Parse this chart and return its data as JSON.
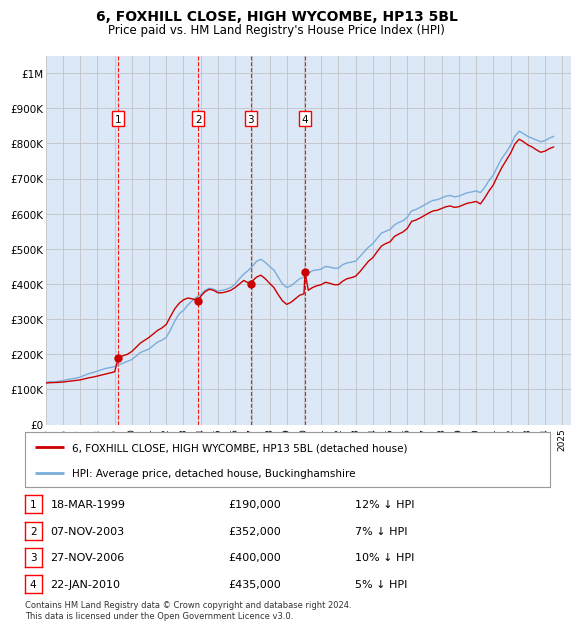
{
  "title": "6, FOXHILL CLOSE, HIGH WYCOMBE, HP13 5BL",
  "subtitle": "Price paid vs. HM Land Registry's House Price Index (HPI)",
  "ylim": [
    0,
    1050000
  ],
  "yticks": [
    0,
    100000,
    200000,
    300000,
    400000,
    500000,
    600000,
    700000,
    800000,
    900000,
    1000000
  ],
  "ytick_labels": [
    "£0",
    "£100K",
    "£200K",
    "£300K",
    "£400K",
    "£500K",
    "£600K",
    "£700K",
    "£800K",
    "£900K",
    "£1M"
  ],
  "hpi_color": "#7aaddb",
  "price_color": "#cc0000",
  "background_color": "#ffffff",
  "grid_color": "#bbbbbb",
  "plot_bg_color": "#dce8f5",
  "transaction_dates": [
    "1999-03-18",
    "2003-11-07",
    "2006-11-27",
    "2010-01-22"
  ],
  "transaction_prices": [
    190000,
    352000,
    400000,
    435000
  ],
  "transaction_labels": [
    "1",
    "2",
    "3",
    "4"
  ],
  "transaction_hpi_pct": [
    "12% ↓ HPI",
    "7% ↓ HPI",
    "10% ↓ HPI",
    "5% ↓ HPI"
  ],
  "transaction_price_labels": [
    "£190,000",
    "£352,000",
    "£400,000",
    "£435,000"
  ],
  "transaction_date_labels": [
    "18-MAR-1999",
    "07-NOV-2003",
    "27-NOV-2006",
    "22-JAN-2010"
  ],
  "legend_label_price": "6, FOXHILL CLOSE, HIGH WYCOMBE, HP13 5BL (detached house)",
  "legend_label_hpi": "HPI: Average price, detached house, Buckinghamshire",
  "footer": "Contains HM Land Registry data © Crown copyright and database right 2024.\nThis data is licensed under the Open Government Licence v3.0.",
  "hpi_data_x": [
    1995.0,
    1995.25,
    1995.5,
    1995.75,
    1996.0,
    1996.25,
    1996.5,
    1996.75,
    1997.0,
    1997.25,
    1997.5,
    1997.75,
    1998.0,
    1998.25,
    1998.5,
    1998.75,
    1999.0,
    1999.25,
    1999.5,
    1999.75,
    2000.0,
    2000.25,
    2000.5,
    2000.75,
    2001.0,
    2001.25,
    2001.5,
    2001.75,
    2002.0,
    2002.25,
    2002.5,
    2002.75,
    2003.0,
    2003.25,
    2003.5,
    2003.75,
    2004.0,
    2004.25,
    2004.5,
    2004.75,
    2005.0,
    2005.25,
    2005.5,
    2005.75,
    2006.0,
    2006.25,
    2006.5,
    2006.75,
    2007.0,
    2007.25,
    2007.5,
    2007.75,
    2008.0,
    2008.25,
    2008.5,
    2008.75,
    2009.0,
    2009.25,
    2009.5,
    2009.75,
    2010.0,
    2010.25,
    2010.5,
    2010.75,
    2011.0,
    2011.25,
    2011.5,
    2011.75,
    2012.0,
    2012.25,
    2012.5,
    2012.75,
    2013.0,
    2013.25,
    2013.5,
    2013.75,
    2014.0,
    2014.25,
    2014.5,
    2014.75,
    2015.0,
    2015.25,
    2015.5,
    2015.75,
    2016.0,
    2016.25,
    2016.5,
    2016.75,
    2017.0,
    2017.25,
    2017.5,
    2017.75,
    2018.0,
    2018.25,
    2018.5,
    2018.75,
    2019.0,
    2019.25,
    2019.5,
    2019.75,
    2020.0,
    2020.25,
    2020.5,
    2020.75,
    2021.0,
    2021.25,
    2021.5,
    2021.75,
    2022.0,
    2022.25,
    2022.5,
    2022.75,
    2023.0,
    2023.25,
    2023.5,
    2023.75,
    2024.0,
    2024.25,
    2024.5
  ],
  "hpi_data_y": [
    120000,
    122000,
    121000,
    123000,
    125000,
    128000,
    130000,
    132000,
    135000,
    140000,
    145000,
    148000,
    152000,
    156000,
    160000,
    162000,
    165000,
    170000,
    175000,
    180000,
    185000,
    195000,
    205000,
    210000,
    215000,
    225000,
    235000,
    240000,
    248000,
    270000,
    295000,
    315000,
    325000,
    340000,
    352000,
    362000,
    370000,
    382000,
    388000,
    385000,
    380000,
    382000,
    385000,
    390000,
    400000,
    415000,
    428000,
    438000,
    450000,
    465000,
    470000,
    462000,
    450000,
    440000,
    420000,
    400000,
    390000,
    395000,
    405000,
    415000,
    420000,
    430000,
    438000,
    440000,
    442000,
    450000,
    448000,
    445000,
    445000,
    455000,
    460000,
    462000,
    465000,
    478000,
    492000,
    505000,
    515000,
    530000,
    545000,
    550000,
    555000,
    568000,
    575000,
    580000,
    590000,
    608000,
    612000,
    618000,
    625000,
    632000,
    638000,
    640000,
    645000,
    650000,
    652000,
    648000,
    650000,
    655000,
    660000,
    662000,
    665000,
    660000,
    675000,
    695000,
    710000,
    735000,
    758000,
    775000,
    795000,
    820000,
    835000,
    828000,
    820000,
    815000,
    810000,
    805000,
    808000,
    815000,
    820000
  ],
  "price_data_x": [
    1995.0,
    1995.25,
    1995.5,
    1995.75,
    1996.0,
    1996.25,
    1996.5,
    1996.75,
    1997.0,
    1997.25,
    1997.5,
    1997.75,
    1998.0,
    1998.25,
    1998.5,
    1998.75,
    1999.0,
    1999.22,
    1999.25,
    1999.5,
    1999.75,
    2000.0,
    2000.25,
    2000.5,
    2000.75,
    2001.0,
    2001.25,
    2001.5,
    2001.75,
    2002.0,
    2002.25,
    2002.5,
    2002.75,
    2003.0,
    2003.25,
    2003.5,
    2003.85,
    2004.0,
    2004.25,
    2004.5,
    2004.75,
    2005.0,
    2005.25,
    2005.5,
    2005.75,
    2006.0,
    2006.25,
    2006.5,
    2006.9,
    2007.0,
    2007.25,
    2007.5,
    2007.75,
    2008.0,
    2008.25,
    2008.5,
    2008.75,
    2009.0,
    2009.25,
    2009.5,
    2009.75,
    2010.0,
    2010.06,
    2010.25,
    2010.5,
    2010.75,
    2011.0,
    2011.25,
    2011.5,
    2011.75,
    2012.0,
    2012.25,
    2012.5,
    2012.75,
    2013.0,
    2013.25,
    2013.5,
    2013.75,
    2014.0,
    2014.25,
    2014.5,
    2014.75,
    2015.0,
    2015.25,
    2015.5,
    2015.75,
    2016.0,
    2016.25,
    2016.5,
    2016.75,
    2017.0,
    2017.25,
    2017.5,
    2017.75,
    2018.0,
    2018.25,
    2018.5,
    2018.75,
    2019.0,
    2019.25,
    2019.5,
    2019.75,
    2020.0,
    2020.25,
    2020.5,
    2020.75,
    2021.0,
    2021.25,
    2021.5,
    2021.75,
    2022.0,
    2022.25,
    2022.5,
    2022.75,
    2023.0,
    2023.25,
    2023.5,
    2023.75,
    2024.0,
    2024.25,
    2024.5
  ],
  "price_data_y": [
    118000,
    119000,
    119500,
    120000,
    121000,
    122500,
    124000,
    125500,
    127000,
    130000,
    133000,
    135000,
    138000,
    141000,
    144000,
    147000,
    150000,
    190000,
    192000,
    196000,
    200000,
    208000,
    220000,
    232000,
    240000,
    248000,
    258000,
    268000,
    275000,
    285000,
    308000,
    330000,
    345000,
    355000,
    360000,
    358000,
    352000,
    365000,
    378000,
    385000,
    382000,
    375000,
    375000,
    378000,
    382000,
    390000,
    400000,
    410000,
    400000,
    408000,
    420000,
    425000,
    415000,
    402000,
    390000,
    370000,
    352000,
    342000,
    348000,
    358000,
    368000,
    372000,
    435000,
    382000,
    390000,
    395000,
    398000,
    405000,
    402000,
    398000,
    398000,
    408000,
    415000,
    418000,
    422000,
    435000,
    450000,
    465000,
    475000,
    492000,
    508000,
    515000,
    520000,
    535000,
    542000,
    548000,
    558000,
    578000,
    582000,
    588000,
    595000,
    602000,
    608000,
    610000,
    615000,
    620000,
    622000,
    618000,
    620000,
    625000,
    630000,
    632000,
    635000,
    628000,
    645000,
    665000,
    682000,
    708000,
    732000,
    752000,
    772000,
    798000,
    812000,
    805000,
    796000,
    790000,
    782000,
    775000,
    778000,
    785000,
    790000
  ]
}
